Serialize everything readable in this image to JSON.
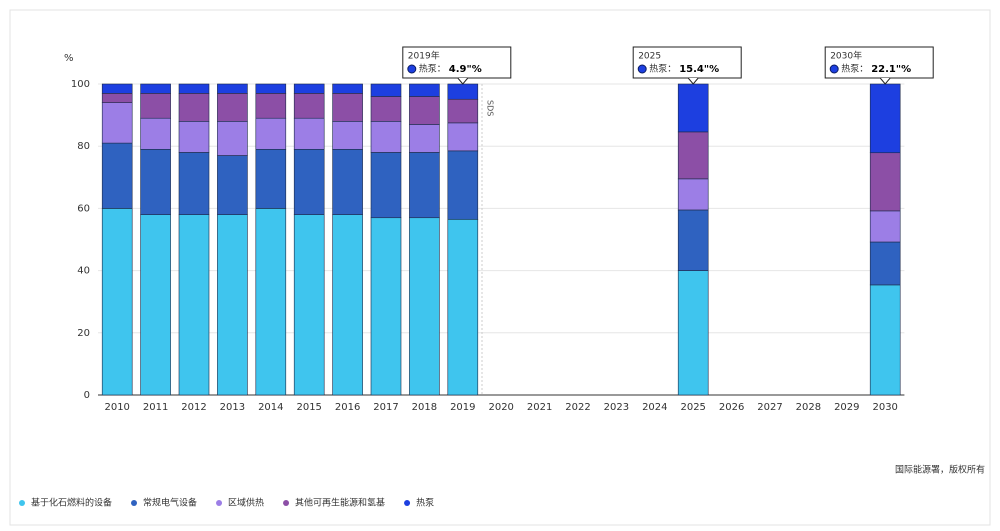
{
  "chart_data": {
    "type": "stacked-bar",
    "y_unit": "%",
    "categories": [
      "2010",
      "2011",
      "2012",
      "2013",
      "2014",
      "2015",
      "2016",
      "2017",
      "2018",
      "2019",
      "2020",
      "2021",
      "2022",
      "2023",
      "2024",
      "2025",
      "2026",
      "2027",
      "2028",
      "2029",
      "2030"
    ],
    "series": [
      {
        "name": "基于化石燃料的设备",
        "color": "#3fc5ee",
        "values": [
          60,
          58,
          58,
          58,
          60,
          58,
          58,
          57,
          57,
          56.5,
          null,
          null,
          null,
          null,
          null,
          40,
          null,
          null,
          null,
          null,
          35.4
        ]
      },
      {
        "name": "常规电气设备",
        "color": "#2f62c0",
        "values": [
          21,
          21,
          20,
          19,
          19,
          21,
          21,
          21,
          21,
          22,
          null,
          null,
          null,
          null,
          null,
          19.5,
          null,
          null,
          null,
          null,
          13.8
        ]
      },
      {
        "name": "区域供热",
        "color": "#9c7ee6",
        "values": [
          13,
          10,
          10,
          11,
          10,
          10,
          9,
          10,
          9,
          9,
          null,
          null,
          null,
          null,
          null,
          10,
          null,
          null,
          null,
          null,
          10
        ]
      },
      {
        "name": "其他可再生能源和氢基",
        "color": "#8c4fa6",
        "values": [
          3,
          8,
          9,
          9,
          8,
          8,
          9,
          8,
          9,
          7.6,
          null,
          null,
          null,
          null,
          null,
          15.1,
          null,
          null,
          null,
          null,
          18.7
        ]
      },
      {
        "name": "热泵",
        "color": "#1d3fe0",
        "values": [
          3,
          3,
          3,
          3,
          3,
          3,
          3,
          4,
          4,
          4.9,
          null,
          null,
          null,
          null,
          null,
          15.4,
          null,
          null,
          null,
          null,
          22.1
        ]
      }
    ],
    "ylim": [
      0,
      100
    ],
    "yticks": [
      0,
      20,
      40,
      60,
      80,
      100
    ],
    "grid": true,
    "scenario_label": "SDS",
    "annotations": [
      {
        "title": "2019年",
        "label": "热泵：",
        "text": "4.9\"%"
      },
      {
        "title": "2025",
        "label": "热泵：",
        "text": "15.4\"%"
      },
      {
        "title": "2030年",
        "label": "热泵：",
        "text": "22.1\"%"
      }
    ],
    "source": "国际能源署，版权所有"
  }
}
